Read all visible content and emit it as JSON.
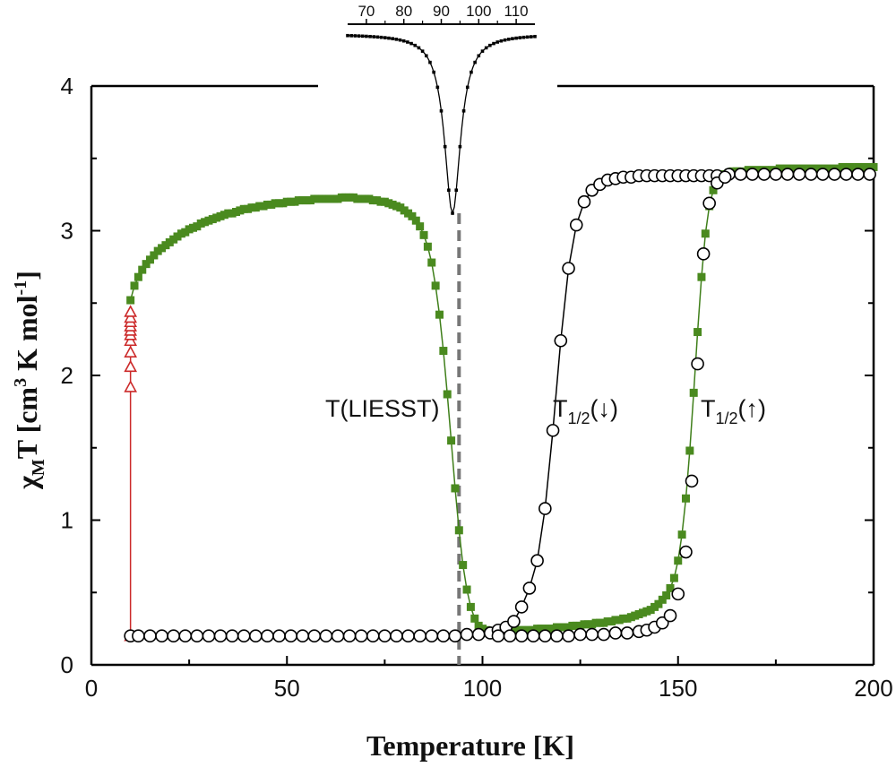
{
  "chart_data": {
    "type": "scatter",
    "xlabel": "Temperature [K]",
    "ylabel": "χ",
    "ylabel_sub": "M",
    "ylabel_rest": "T  [cm",
    "ylabel_sup1": "3",
    "ylabel_rest2": " K mol",
    "ylabel_sup2": "-1",
    "ylabel_end": "]",
    "xlim": [
      0,
      200
    ],
    "ylim": [
      0,
      4
    ],
    "x_ticks": [
      0,
      50,
      100,
      150,
      200
    ],
    "y_ticks": [
      0,
      1,
      2,
      3,
      4
    ],
    "colors": {
      "green": "#4a8a1f",
      "green_line": "#3f7f1a",
      "red": "#cc2a2a",
      "black": "#000000",
      "dashed": "#777777"
    },
    "series": [
      {
        "marker": "open-circle",
        "color": "#000000",
        "points": [
          [
            10,
            0.2
          ],
          [
            12,
            0.2
          ],
          [
            15,
            0.2
          ],
          [
            18,
            0.2
          ],
          [
            21,
            0.2
          ],
          [
            24,
            0.2
          ],
          [
            27,
            0.2
          ],
          [
            30,
            0.2
          ],
          [
            33,
            0.2
          ],
          [
            36,
            0.2
          ],
          [
            39,
            0.2
          ],
          [
            42,
            0.2
          ],
          [
            45,
            0.2
          ],
          [
            48,
            0.2
          ],
          [
            51,
            0.2
          ],
          [
            54,
            0.2
          ],
          [
            57,
            0.2
          ],
          [
            60,
            0.2
          ],
          [
            63,
            0.2
          ],
          [
            66,
            0.2
          ],
          [
            69,
            0.2
          ],
          [
            72,
            0.2
          ],
          [
            75,
            0.2
          ],
          [
            78,
            0.2
          ],
          [
            81,
            0.2
          ],
          [
            84,
            0.2
          ],
          [
            87,
            0.2
          ],
          [
            90,
            0.2
          ],
          [
            93,
            0.2
          ],
          [
            96,
            0.21
          ],
          [
            99,
            0.21
          ],
          [
            102,
            0.22
          ],
          [
            104,
            0.24
          ],
          [
            106,
            0.26
          ],
          [
            108,
            0.3
          ],
          [
            110,
            0.4
          ],
          [
            112,
            0.53
          ],
          [
            114,
            0.72
          ],
          [
            116,
            1.08
          ],
          [
            118,
            1.62
          ],
          [
            120,
            2.24
          ],
          [
            122,
            2.74
          ],
          [
            124,
            3.04
          ],
          [
            126,
            3.2
          ],
          [
            128,
            3.28
          ],
          [
            130,
            3.32
          ],
          [
            132,
            3.35
          ],
          [
            134,
            3.36
          ],
          [
            136,
            3.37
          ],
          [
            138,
            3.37
          ],
          [
            140,
            3.38
          ],
          [
            142,
            3.38
          ],
          [
            144,
            3.38
          ],
          [
            146,
            3.38
          ],
          [
            148,
            3.38
          ],
          [
            150,
            3.38
          ],
          [
            152,
            3.38
          ],
          [
            154,
            3.38
          ],
          [
            156,
            3.38
          ],
          [
            158,
            3.38
          ],
          [
            160,
            3.38
          ],
          [
            163,
            3.39
          ],
          [
            166,
            3.39
          ],
          [
            169,
            3.39
          ],
          [
            172,
            3.39
          ],
          [
            175,
            3.39
          ],
          [
            178,
            3.39
          ],
          [
            181,
            3.39
          ],
          [
            184,
            3.39
          ],
          [
            187,
            3.39
          ],
          [
            190,
            3.39
          ],
          [
            193,
            3.39
          ],
          [
            196,
            3.39
          ],
          [
            199,
            3.39
          ],
          [
            104,
            0.2
          ],
          [
            107,
            0.2
          ],
          [
            110,
            0.2
          ],
          [
            113,
            0.2
          ],
          [
            116,
            0.2
          ],
          [
            119,
            0.2
          ],
          [
            122,
            0.2
          ],
          [
            125,
            0.21
          ],
          [
            128,
            0.21
          ],
          [
            131,
            0.21
          ],
          [
            134,
            0.22
          ],
          [
            137,
            0.22
          ],
          [
            140,
            0.23
          ],
          [
            142,
            0.24
          ],
          [
            144,
            0.26
          ],
          [
            146,
            0.29
          ],
          [
            148,
            0.34
          ],
          [
            150,
            0.49
          ],
          [
            152,
            0.78
          ],
          [
            153.5,
            1.27
          ],
          [
            155,
            2.08
          ],
          [
            156.5,
            2.84
          ],
          [
            158,
            3.19
          ],
          [
            160,
            3.33
          ],
          [
            162,
            3.37
          ]
        ]
      },
      {
        "marker": "filled-square",
        "color": "#4a8a1f",
        "points": [
          [
            10,
            2.52
          ],
          [
            11,
            2.62
          ],
          [
            12,
            2.68
          ],
          [
            13,
            2.73
          ],
          [
            14,
            2.77
          ],
          [
            15,
            2.8
          ],
          [
            16,
            2.83
          ],
          [
            17,
            2.86
          ],
          [
            18,
            2.88
          ],
          [
            19,
            2.9
          ],
          [
            20,
            2.92
          ],
          [
            21,
            2.94
          ],
          [
            22,
            2.96
          ],
          [
            23,
            2.98
          ],
          [
            24,
            2.99
          ],
          [
            25,
            3.01
          ],
          [
            26,
            3.02
          ],
          [
            27,
            3.03
          ],
          [
            28,
            3.05
          ],
          [
            29,
            3.06
          ],
          [
            30,
            3.07
          ],
          [
            31,
            3.08
          ],
          [
            32,
            3.09
          ],
          [
            33,
            3.1
          ],
          [
            34,
            3.11
          ],
          [
            35,
            3.12
          ],
          [
            36,
            3.12
          ],
          [
            37,
            3.13
          ],
          [
            38,
            3.14
          ],
          [
            39,
            3.15
          ],
          [
            40,
            3.15
          ],
          [
            41,
            3.16
          ],
          [
            42,
            3.16
          ],
          [
            43,
            3.17
          ],
          [
            44,
            3.17
          ],
          [
            45,
            3.18
          ],
          [
            46,
            3.18
          ],
          [
            47,
            3.19
          ],
          [
            48,
            3.19
          ],
          [
            49,
            3.19
          ],
          [
            50,
            3.2
          ],
          [
            51,
            3.2
          ],
          [
            52,
            3.2
          ],
          [
            53,
            3.21
          ],
          [
            54,
            3.21
          ],
          [
            55,
            3.21
          ],
          [
            56,
            3.21
          ],
          [
            57,
            3.22
          ],
          [
            58,
            3.22
          ],
          [
            59,
            3.22
          ],
          [
            60,
            3.22
          ],
          [
            61,
            3.22
          ],
          [
            62,
            3.22
          ],
          [
            63,
            3.22
          ],
          [
            64,
            3.23
          ],
          [
            65,
            3.23
          ],
          [
            66,
            3.23
          ],
          [
            67,
            3.23
          ],
          [
            68,
            3.22
          ],
          [
            69,
            3.22
          ],
          [
            70,
            3.22
          ],
          [
            71,
            3.22
          ],
          [
            72,
            3.21
          ],
          [
            73,
            3.21
          ],
          [
            74,
            3.2
          ],
          [
            75,
            3.2
          ],
          [
            76,
            3.19
          ],
          [
            77,
            3.18
          ],
          [
            78,
            3.17
          ],
          [
            79,
            3.16
          ],
          [
            80,
            3.14
          ],
          [
            81,
            3.12
          ],
          [
            82,
            3.1
          ],
          [
            83,
            3.07
          ],
          [
            84,
            3.03
          ],
          [
            85,
            2.97
          ],
          [
            86,
            2.89
          ],
          [
            87,
            2.78
          ],
          [
            88,
            2.62
          ],
          [
            89,
            2.42
          ],
          [
            90,
            2.17
          ],
          [
            91,
            1.87
          ],
          [
            92,
            1.55
          ],
          [
            93,
            1.22
          ],
          [
            94,
            0.93
          ],
          [
            95,
            0.69
          ],
          [
            96,
            0.52
          ],
          [
            97,
            0.4
          ],
          [
            98,
            0.32
          ],
          [
            99,
            0.27
          ],
          [
            100,
            0.25
          ],
          [
            101,
            0.24
          ],
          [
            102,
            0.23
          ],
          [
            103,
            0.23
          ],
          [
            104,
            0.23
          ],
          [
            105,
            0.23
          ],
          [
            106,
            0.23
          ],
          [
            107,
            0.23
          ],
          [
            108,
            0.23
          ],
          [
            109,
            0.24
          ],
          [
            110,
            0.24
          ],
          [
            111,
            0.24
          ],
          [
            112,
            0.24
          ],
          [
            113,
            0.24
          ],
          [
            114,
            0.25
          ],
          [
            115,
            0.25
          ],
          [
            116,
            0.25
          ],
          [
            117,
            0.25
          ],
          [
            118,
            0.25
          ],
          [
            119,
            0.26
          ],
          [
            120,
            0.26
          ],
          [
            121,
            0.26
          ],
          [
            122,
            0.26
          ],
          [
            123,
            0.27
          ],
          [
            124,
            0.27
          ],
          [
            125,
            0.27
          ],
          [
            126,
            0.28
          ],
          [
            127,
            0.28
          ],
          [
            128,
            0.28
          ],
          [
            129,
            0.29
          ],
          [
            130,
            0.29
          ],
          [
            131,
            0.29
          ],
          [
            132,
            0.3
          ],
          [
            133,
            0.3
          ],
          [
            134,
            0.31
          ],
          [
            135,
            0.31
          ],
          [
            136,
            0.32
          ],
          [
            137,
            0.32
          ],
          [
            138,
            0.33
          ],
          [
            139,
            0.34
          ],
          [
            140,
            0.35
          ],
          [
            141,
            0.36
          ],
          [
            142,
            0.37
          ],
          [
            143,
            0.38
          ],
          [
            144,
            0.4
          ],
          [
            145,
            0.42
          ],
          [
            146,
            0.45
          ],
          [
            147,
            0.48
          ],
          [
            148,
            0.53
          ],
          [
            149,
            0.6
          ],
          [
            150,
            0.72
          ],
          [
            151,
            0.9
          ],
          [
            152,
            1.15
          ],
          [
            153,
            1.48
          ],
          [
            154,
            1.88
          ],
          [
            155,
            2.3
          ],
          [
            156,
            2.68
          ],
          [
            157,
            2.98
          ],
          [
            158,
            3.17
          ],
          [
            159,
            3.28
          ],
          [
            160,
            3.34
          ],
          [
            161,
            3.37
          ],
          [
            162,
            3.39
          ],
          [
            163,
            3.4
          ],
          [
            164,
            3.41
          ],
          [
            165,
            3.41
          ],
          [
            166,
            3.41
          ],
          [
            168,
            3.42
          ],
          [
            170,
            3.42
          ],
          [
            172,
            3.42
          ],
          [
            174,
            3.42
          ],
          [
            176,
            3.43
          ],
          [
            178,
            3.43
          ],
          [
            180,
            3.43
          ],
          [
            182,
            3.43
          ],
          [
            184,
            3.43
          ],
          [
            186,
            3.43
          ],
          [
            188,
            3.43
          ],
          [
            190,
            3.43
          ],
          [
            192,
            3.44
          ],
          [
            194,
            3.44
          ],
          [
            196,
            3.44
          ],
          [
            198,
            3.44
          ],
          [
            200,
            3.44
          ]
        ]
      },
      {
        "marker": "open-triangle",
        "color": "#cc2a2a",
        "points": [
          [
            10,
            0.2
          ],
          [
            10,
            1.92
          ],
          [
            10,
            2.06
          ],
          [
            10,
            2.16
          ],
          [
            10,
            2.24
          ],
          [
            10,
            2.28
          ],
          [
            10,
            2.31
          ],
          [
            10,
            2.34
          ],
          [
            10,
            2.37
          ],
          [
            10,
            2.4
          ],
          [
            10,
            2.44
          ]
        ]
      }
    ],
    "annotations": [
      {
        "text": "T(LIESST)",
        "x": 79,
        "y": 1.8
      },
      {
        "text": "T",
        "sub": "1/2",
        "arrow": "(↓)",
        "x": 122,
        "y": 1.8
      },
      {
        "text": "T",
        "sub": "1/2",
        "arrow": "(↑)",
        "x": 156,
        "y": 1.8
      }
    ],
    "t_liesst_x": 94,
    "inset": {
      "x_ticks": [
        70,
        80,
        90,
        100,
        110
      ],
      "xlim": [
        65,
        115
      ],
      "derivative_min_x": 93
    }
  }
}
